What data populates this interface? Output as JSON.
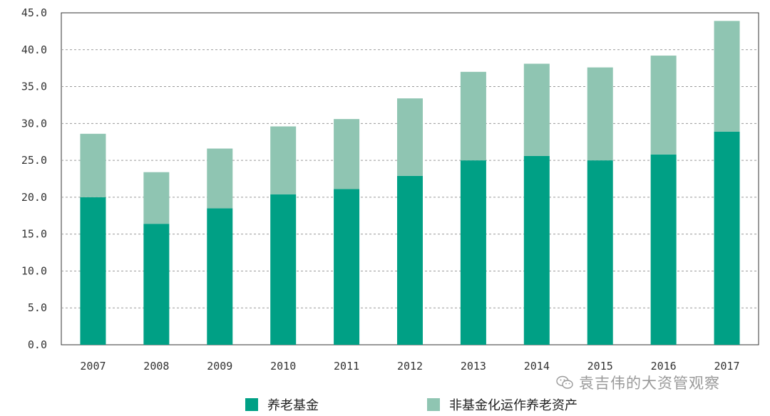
{
  "chart_data": {
    "type": "bar",
    "stacked": true,
    "categories": [
      "2007",
      "2008",
      "2009",
      "2010",
      "2011",
      "2012",
      "2013",
      "2014",
      "2015",
      "2016",
      "2017"
    ],
    "series": [
      {
        "name": "养老基金",
        "color": "#00a085",
        "values": [
          20.0,
          16.4,
          18.5,
          20.4,
          21.1,
          22.9,
          25.0,
          25.6,
          25.0,
          25.8,
          28.9
        ]
      },
      {
        "name": "非基金化运作养老资产",
        "color": "#8fc5b2",
        "values": [
          8.6,
          7.0,
          8.1,
          9.2,
          9.5,
          10.5,
          12.0,
          12.5,
          12.6,
          13.4,
          15.0
        ]
      }
    ],
    "yticks": [
      "0.0",
      "5.0",
      "10.0",
      "15.0",
      "20.0",
      "25.0",
      "30.0",
      "35.0",
      "40.0",
      "45.0"
    ],
    "ylim": [
      0,
      45
    ],
    "grid": true,
    "legend": "bottom-left",
    "title": "",
    "xlabel": "",
    "ylabel": ""
  },
  "watermark": {
    "text": "袁吉伟的大资管观察",
    "icon": "wechat-icon"
  }
}
